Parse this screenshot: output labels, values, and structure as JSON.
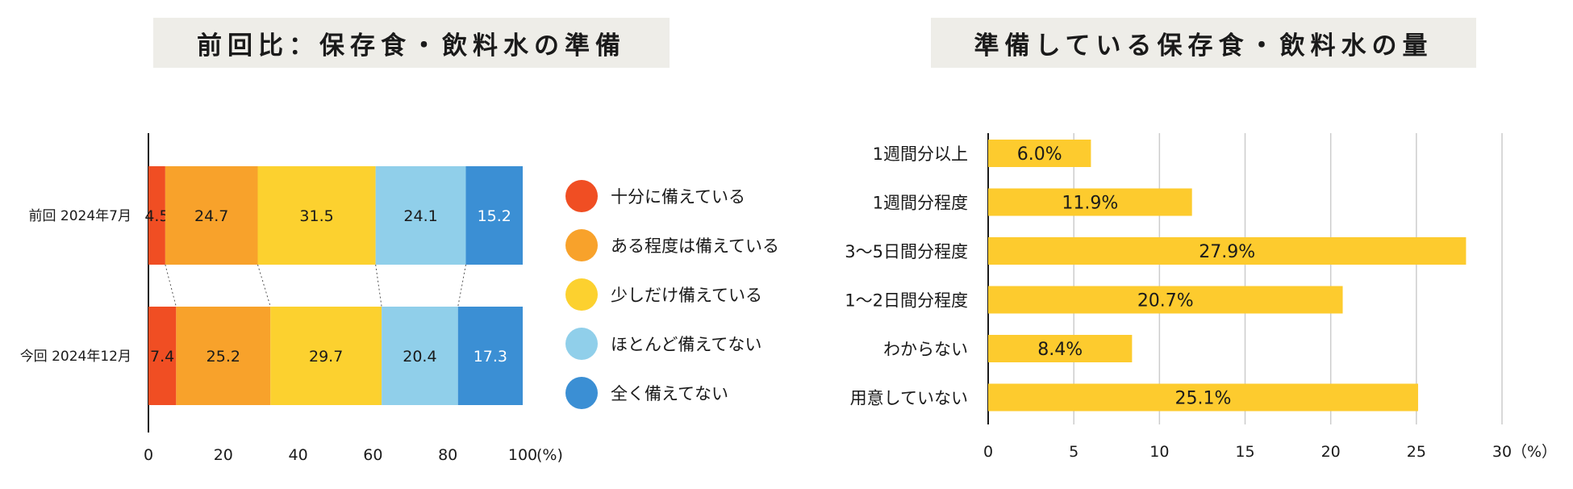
{
  "chart_data": [
    {
      "type": "bar",
      "orientation": "horizontal",
      "stacked": true,
      "title": "前回比：保存食・飲料水の準備",
      "categories": [
        "前回 2024年7月",
        "今回 2024年12月"
      ],
      "series": [
        {
          "name": "十分に備えている",
          "color": "#f04e23",
          "values": [
            4.5,
            7.4
          ]
        },
        {
          "name": "ある程度は備えている",
          "color": "#f8a22b",
          "values": [
            24.7,
            25.2
          ]
        },
        {
          "name": "少しだけ備えている",
          "color": "#fcd12f",
          "values": [
            31.5,
            29.7
          ]
        },
        {
          "name": "ほとんど備えてない",
          "color": "#90cfea",
          "values": [
            24.1,
            20.4
          ]
        },
        {
          "name": "全く備えてない",
          "color": "#3b8fd4",
          "values": [
            15.2,
            17.3
          ]
        }
      ],
      "xticks": [
        "0",
        "20",
        "40",
        "60",
        "80",
        "100"
      ],
      "xunit": "(%)",
      "xlim": [
        0,
        100
      ],
      "legend_position": "right"
    },
    {
      "type": "bar",
      "orientation": "horizontal",
      "title": "準備している保存食・飲料水の量",
      "categories": [
        "1週間分以上",
        "1週間分程度",
        "3〜5日間分程度",
        "1〜2日間分程度",
        "わからない",
        "用意していない"
      ],
      "values": [
        6.0,
        11.9,
        27.9,
        20.7,
        8.4,
        25.1
      ],
      "labels": [
        "6.0%",
        "11.9%",
        "27.9%",
        "20.7%",
        "8.4%",
        "25.1%"
      ],
      "color": "#fdcb2e",
      "xticks": [
        "0",
        "5",
        "10",
        "15",
        "20",
        "25",
        "30"
      ],
      "xunit": "（%）",
      "xlim": [
        0,
        30
      ],
      "grid": true
    }
  ]
}
